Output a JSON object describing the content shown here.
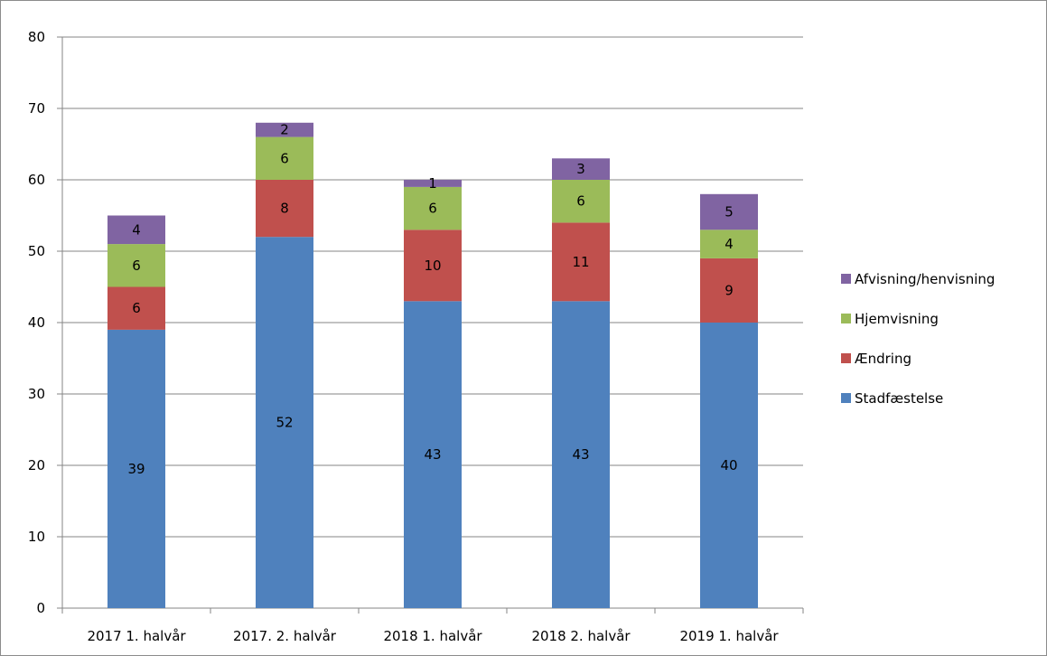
{
  "chart_data": {
    "type": "bar",
    "stacked": true,
    "categories": [
      "2017 1. halvår",
      "2017. 2. halvår",
      "2018 1. halvår",
      "2018 2. halvår",
      "2019 1. halvår"
    ],
    "series": [
      {
        "name": "Stadfæstelse",
        "color": "#4f81bd",
        "values": [
          39,
          52,
          43,
          43,
          40
        ]
      },
      {
        "name": "Ændring",
        "color": "#c0504d",
        "values": [
          6,
          8,
          10,
          11,
          9
        ]
      },
      {
        "name": "Hjemvisning",
        "color": "#9bbb59",
        "values": [
          6,
          6,
          6,
          6,
          4
        ]
      },
      {
        "name": "Afvisning/henvisning",
        "color": "#8064a2",
        "values": [
          4,
          2,
          1,
          3,
          5
        ]
      }
    ],
    "ylim": [
      0,
      80
    ],
    "yticks": [
      0,
      10,
      20,
      30,
      40,
      50,
      60,
      70,
      80
    ],
    "grid": true,
    "legend": "right",
    "legend_order": [
      "Afvisning/henvisning",
      "Hjemvisning",
      "Ændring",
      "Stadfæstelse"
    ]
  }
}
